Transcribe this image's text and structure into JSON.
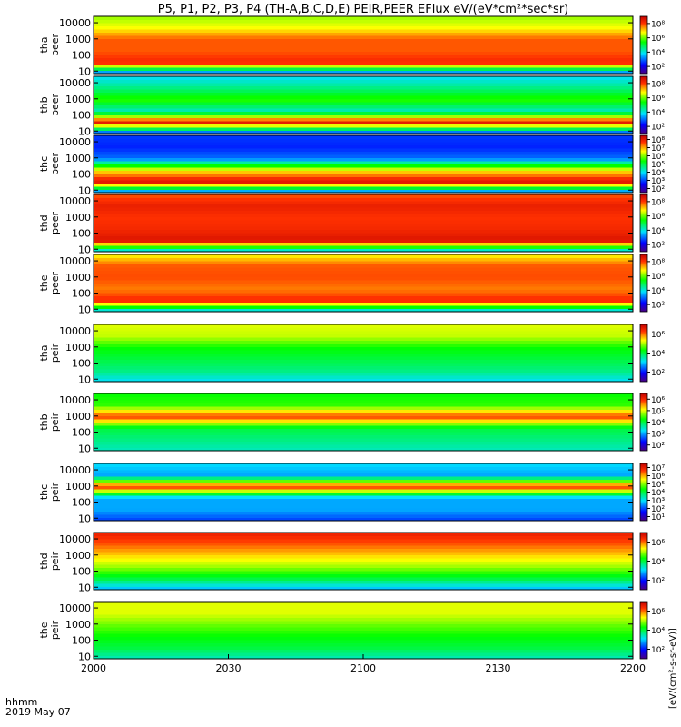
{
  "title": "P5, P1, P2, P3, P4 (TH-A,B,C,D,E) PEIR,PEER EFlux eV/(eV*cm²*sec*sr)",
  "x_axis": {
    "label_line1": "hhmm",
    "label_line2": "2019 May 07",
    "ticks": [
      "2000",
      "2030",
      "2100",
      "2130",
      "2200"
    ]
  },
  "colorbar_units": "[eV/(cm²-s-sr-eV)]",
  "y_tick_labels": [
    "10",
    "100",
    "1000",
    "10000"
  ],
  "chart_data": {
    "type": "heatmap",
    "title": "P5, P1, P2, P3, P4 (TH-A,B,C,D,E) PEIR,PEER EFlux eV/(eV*cm²*sec*sr)",
    "x_range": [
      "20:00",
      "22:00"
    ],
    "y_scale": "log",
    "y_range_eV": [
      7,
      25000
    ],
    "grid": false,
    "colormap": "rainbow",
    "panels": [
      {
        "probe": "tha",
        "type": "peer",
        "label": "tha\npeer",
        "colorbar_ticks": [
          "10²",
          "10⁴",
          "10⁶",
          "10⁸"
        ]
      },
      {
        "probe": "thb",
        "type": "peer",
        "label": "thb\npeer",
        "colorbar_ticks": [
          "10²",
          "10⁴",
          "10⁶",
          "10⁸"
        ]
      },
      {
        "probe": "thc",
        "type": "peer",
        "label": "thc\npeer",
        "colorbar_ticks": [
          "10²",
          "10³",
          "10⁴",
          "10⁵",
          "10⁶",
          "10⁷",
          "10⁸"
        ]
      },
      {
        "probe": "thd",
        "type": "peer",
        "label": "thd\npeer",
        "colorbar_ticks": [
          "10²",
          "10⁴",
          "10⁶",
          "10⁸"
        ]
      },
      {
        "probe": "the",
        "type": "peer",
        "label": "the\npeer",
        "colorbar_ticks": [
          "10²",
          "10⁴",
          "10⁶",
          "10⁸"
        ]
      },
      {
        "probe": "tha",
        "type": "peir",
        "label": "tha\npeir",
        "colorbar_ticks": [
          "10²",
          "10⁴",
          "10⁶"
        ]
      },
      {
        "probe": "thb",
        "type": "peir",
        "label": "thb\npeir",
        "colorbar_ticks": [
          "10²",
          "10³",
          "10⁴",
          "10⁵",
          "10⁶"
        ]
      },
      {
        "probe": "thc",
        "type": "peir",
        "label": "thc\npeir",
        "colorbar_ticks": [
          "10¹",
          "10²",
          "10³",
          "10⁴",
          "10⁵",
          "10⁶",
          "10⁷"
        ]
      },
      {
        "probe": "thd",
        "type": "peir",
        "label": "thd\npeir",
        "colorbar_ticks": [
          "10²",
          "10⁴",
          "10⁶"
        ]
      },
      {
        "probe": "the",
        "type": "peir",
        "label": "the\npeir",
        "colorbar_ticks": [
          "10²",
          "10⁴",
          "10⁶"
        ]
      }
    ]
  }
}
